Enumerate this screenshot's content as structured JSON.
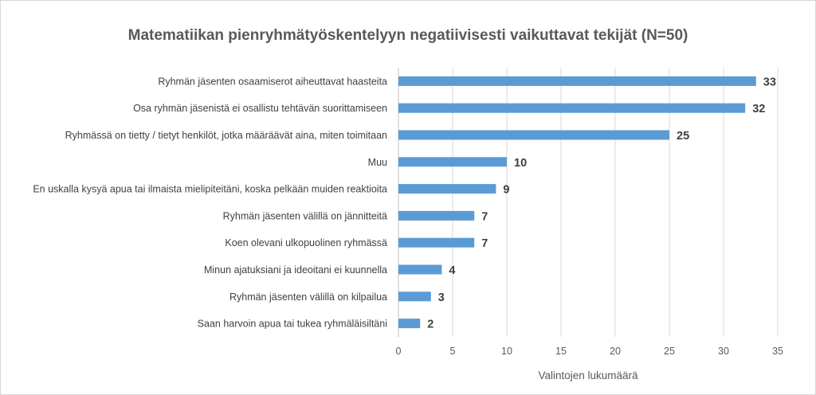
{
  "chart_data": {
    "type": "bar",
    "orientation": "horizontal",
    "title": "Matematiikan pienryhmätyöskentelyyn negatiivisesti vaikuttavat tekijät (N=50)",
    "xlabel": "Valintojen lukumäärä",
    "ylabel": "",
    "xlim": [
      0,
      35
    ],
    "xticks": [
      0,
      5,
      10,
      15,
      20,
      25,
      30,
      35
    ],
    "grid": true,
    "legend": "none",
    "bar_color": "#5b9bd5",
    "categories": [
      "Ryhmän jäsenten osaamiserot aiheuttavat haasteita",
      "Osa ryhmän jäsenistä ei osallistu tehtävän suorittamiseen",
      "Ryhmässä on tietty / tietyt henkilöt, jotka määräävät aina, miten toimitaan",
      "Muu",
      "En uskalla kysyä apua tai ilmaista mielipiteitäni, koska pelkään muiden reaktioita",
      "Ryhmän jäsenten välillä on jännitteitä",
      "Koen olevani ulkopuolinen ryhmässä",
      "Minun ajatuksiani ja ideoitani ei kuunnella",
      "Ryhmän jäsenten välillä on kilpailua",
      "Saan harvoin apua tai tukea ryhmäläisiltäni"
    ],
    "values": [
      33,
      32,
      25,
      10,
      9,
      7,
      7,
      4,
      3,
      2
    ]
  }
}
